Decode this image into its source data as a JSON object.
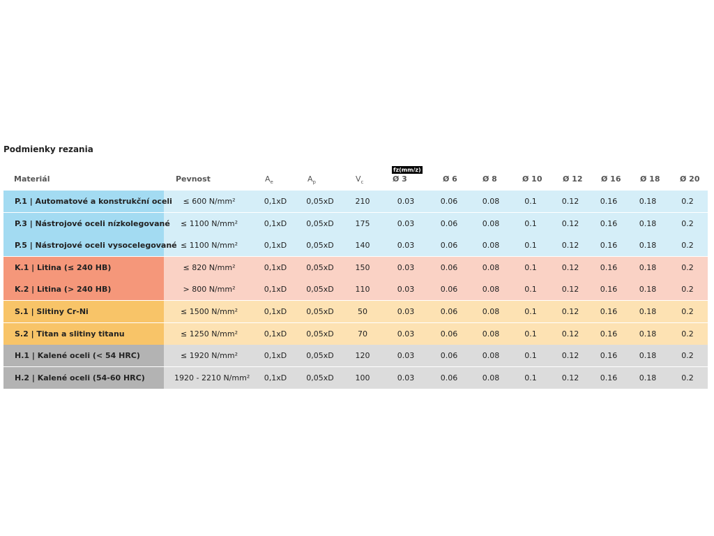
{
  "title": "Podmienky rezania",
  "fz_label": "fz(mm/z)",
  "headers": [
    {
      "text": "Materiál"
    },
    {
      "text": "Pevnost"
    },
    {
      "text": "A",
      "sub": "e"
    },
    {
      "text": "A",
      "sub": "p"
    },
    {
      "text": "V",
      "sub": "c"
    },
    {
      "text": "Ø 3"
    },
    {
      "text": "Ø 6"
    },
    {
      "text": "Ø 8"
    },
    {
      "text": "Ø 10"
    },
    {
      "text": "Ø 12"
    },
    {
      "text": "Ø 16"
    },
    {
      "text": "Ø 18"
    },
    {
      "text": "Ø 20"
    }
  ],
  "rows": [
    {
      "cells": [
        "P.1 | Automatové a konstrukční oceli",
        "≤ 600 N/mm²",
        "0,1xD",
        "0,05xD",
        "210",
        "0.03",
        "0.06",
        "0.08",
        "0.1",
        "0.12",
        "0.16",
        "0.18",
        "0.2"
      ],
      "color": "#a3dbf2",
      "light": "#d5eef8"
    },
    {
      "cells": [
        "P.3 | Nástrojové oceli nízkolegované",
        "≤ 1100 N/mm²",
        "0,1xD",
        "0,05xD",
        "175",
        "0.03",
        "0.06",
        "0.08",
        "0.1",
        "0.12",
        "0.16",
        "0.18",
        "0.2"
      ],
      "color": "#a3dbf2",
      "light": "#d5eef8"
    },
    {
      "cells": [
        "P.5 | Nástrojové oceli vysocelegované",
        "≤ 1100 N/mm²",
        "0,1xD",
        "0,05xD",
        "140",
        "0.03",
        "0.06",
        "0.08",
        "0.1",
        "0.12",
        "0.16",
        "0.18",
        "0.2"
      ],
      "color": "#a3dbf2",
      "light": "#d5eef8"
    },
    {
      "cells": [
        "K.1 | Litina (≤ 240 HB)",
        "≤ 820 N/mm²",
        "0,1xD",
        "0,05xD",
        "150",
        "0.03",
        "0.06",
        "0.08",
        "0.1",
        "0.12",
        "0.16",
        "0.18",
        "0.2"
      ],
      "color": "#f5977a",
      "light": "#fad2c5"
    },
    {
      "cells": [
        "K.2 | Litina (> 240 HB)",
        "> 800 N/mm²",
        "0,1xD",
        "0,05xD",
        "110",
        "0.03",
        "0.06",
        "0.08",
        "0.1",
        "0.12",
        "0.16",
        "0.18",
        "0.2"
      ],
      "color": "#f5977a",
      "light": "#fad2c5"
    },
    {
      "cells": [
        "S.1 | Slitiny Cr-Ni",
        "≤ 1500 N/mm²",
        "0,1xD",
        "0,05xD",
        "50",
        "0.03",
        "0.06",
        "0.08",
        "0.1",
        "0.12",
        "0.16",
        "0.18",
        "0.2"
      ],
      "color": "#f8c468",
      "light": "#fde2b3"
    },
    {
      "cells": [
        "S.2 | Titan a slitiny titanu",
        "≤ 1250 N/mm²",
        "0,1xD",
        "0,05xD",
        "70",
        "0.03",
        "0.06",
        "0.08",
        "0.1",
        "0.12",
        "0.16",
        "0.18",
        "0.2"
      ],
      "color": "#f8c468",
      "light": "#fde2b3"
    },
    {
      "cells": [
        "H.1 | Kalené oceli (< 54 HRC)",
        "≤ 1920 N/mm²",
        "0,1xD",
        "0,05xD",
        "120",
        "0.03",
        "0.06",
        "0.08",
        "0.1",
        "0.12",
        "0.16",
        "0.18",
        "0.2"
      ],
      "color": "#b3b3b3",
      "light": "#dcdcdc"
    },
    {
      "cells": [
        "H.2 | Kalené oceli (54-60 HRC)",
        "1920 - 2210 N/mm²",
        "0,1xD",
        "0,05xD",
        "100",
        "0.03",
        "0.06",
        "0.08",
        "0.1",
        "0.12",
        "0.16",
        "0.18",
        "0.2"
      ],
      "color": "#b3b3b3",
      "light": "#dcdcdc"
    }
  ]
}
